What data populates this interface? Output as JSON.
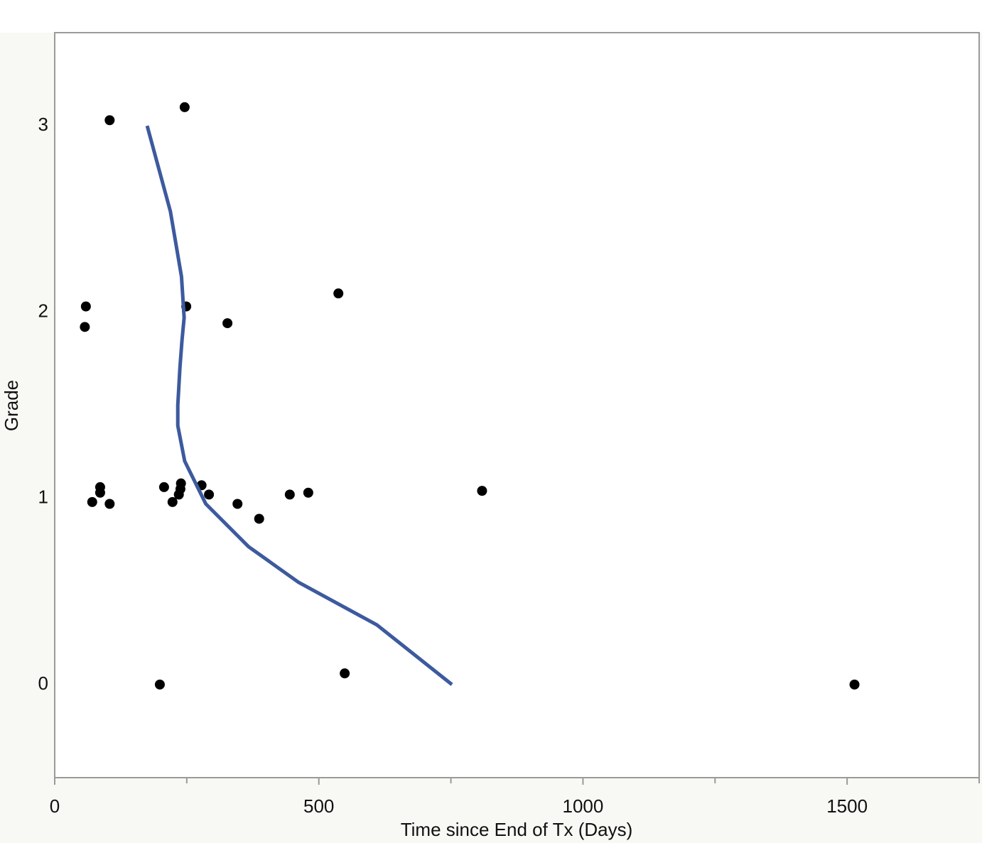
{
  "chart_data": {
    "type": "scatter",
    "x_label": "Time since End of Tx (Days)",
    "y_label": "Grade",
    "xlim": [
      0,
      1750
    ],
    "ylim": [
      -0.5,
      3.5
    ],
    "xticks": [
      0,
      500,
      1000,
      1500
    ],
    "xminor_ticks": [
      250,
      750,
      1250,
      1750
    ],
    "yticks": [
      0,
      1,
      2,
      3
    ],
    "series": [
      {
        "type": "scatter",
        "color": "#000000",
        "x": [
          104,
          246,
          59,
          57,
          249,
          327,
          537,
          86,
          86,
          71,
          104,
          207,
          223,
          235,
          238,
          239,
          278,
          292,
          346,
          387,
          445,
          480,
          809,
          199,
          549,
          1514
        ],
        "values": [
          3.03,
          3.1,
          2.03,
          1.92,
          2.03,
          1.94,
          2.1,
          1.06,
          1.03,
          0.98,
          0.97,
          1.06,
          0.98,
          1.02,
          1.05,
          1.08,
          1.07,
          1.02,
          0.97,
          0.89,
          1.02,
          1.03,
          1.04,
          0.0,
          0.06,
          0.0
        ]
      },
      {
        "type": "line",
        "color": "#3d5a9e",
        "x": [
          175,
          219,
          240,
          245,
          241,
          237,
          233,
          233,
          246,
          286,
          367,
          461,
          610,
          752
        ],
        "values": [
          3.0,
          2.54,
          2.19,
          1.97,
          1.85,
          1.7,
          1.5,
          1.39,
          1.2,
          0.97,
          0.74,
          0.55,
          0.32,
          0.0
        ]
      }
    ]
  }
}
